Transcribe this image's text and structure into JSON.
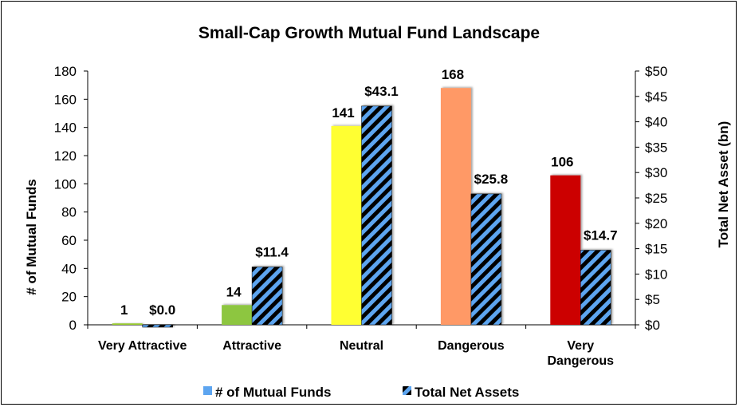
{
  "chart_data": {
    "type": "bar",
    "title": "Small-Cap Growth Mutual Fund Landscape",
    "categories": [
      "Very Attractive",
      "Attractive",
      "Neutral",
      "Dangerous",
      "Very Dangerous"
    ],
    "category_lines": [
      [
        "Very Attractive"
      ],
      [
        "Attractive"
      ],
      [
        "Neutral"
      ],
      [
        "Dangerous"
      ],
      [
        "Very",
        "Dangerous"
      ]
    ],
    "series": [
      {
        "name": "# of Mutual Funds",
        "axis": "left",
        "values": [
          1,
          14,
          141,
          168,
          106
        ],
        "labels": [
          "1",
          "14",
          "141",
          "168",
          "106"
        ],
        "colors": [
          "#9ACD32",
          "#8DC63F",
          "#FFFF33",
          "#FF9966",
          "#CC0000"
        ]
      },
      {
        "name": "Total Net Assets",
        "axis": "right",
        "values": [
          0.0,
          11.4,
          43.1,
          25.8,
          14.7
        ],
        "labels": [
          "$0.0",
          "$11.4",
          "$43.1",
          "$25.8",
          "$14.7"
        ],
        "pattern_colors": [
          "#5DA5F0",
          "#000000"
        ]
      }
    ],
    "ylabel": "# of Mutual Funds",
    "y2label": "Total Net Asset (bn)",
    "ylim": [
      0,
      180
    ],
    "y2lim": [
      0,
      50
    ],
    "yticks": [
      "0",
      "20",
      "40",
      "60",
      "80",
      "100",
      "120",
      "140",
      "160",
      "180"
    ],
    "y2ticks": [
      "$0",
      "$5",
      "$10",
      "$15",
      "$20",
      "$25",
      "$30",
      "$35",
      "$40",
      "$45",
      "$50"
    ],
    "grid": false,
    "legend_position": "bottom"
  }
}
